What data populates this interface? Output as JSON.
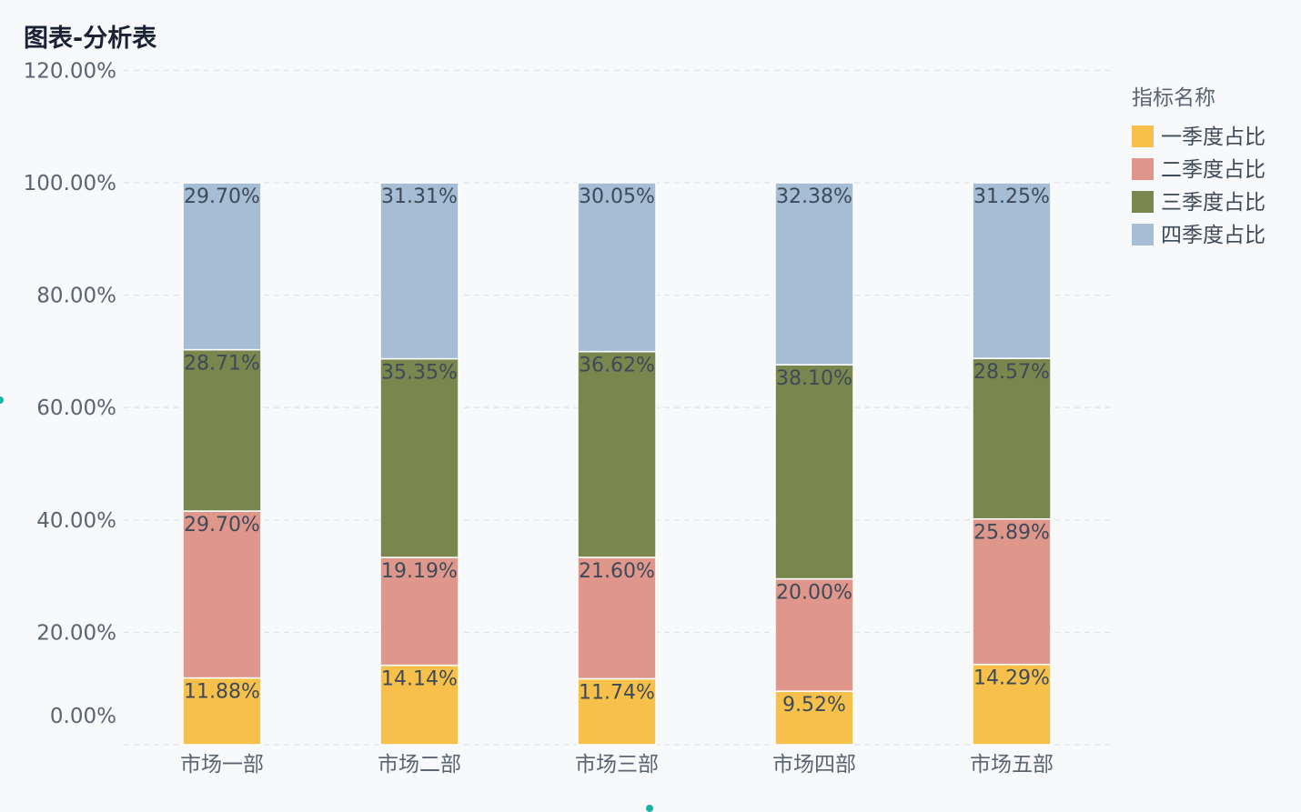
{
  "chart_data": {
    "type": "bar",
    "stacked": true,
    "title": "图表-分析表",
    "categories": [
      "市场一部",
      "市场二部",
      "市场三部",
      "市场四部",
      "市场五部"
    ],
    "series": [
      {
        "name": "一季度占比",
        "color": "#f6c04b",
        "values": [
          11.88,
          14.14,
          11.74,
          9.52,
          14.29
        ],
        "labels": [
          "11.88%",
          "14.14%",
          "11.74%",
          "9.52%",
          "14.29%"
        ]
      },
      {
        "name": "二季度占比",
        "color": "#df978c",
        "values": [
          29.7,
          19.19,
          21.6,
          20.0,
          25.89
        ],
        "labels": [
          "29.70%",
          "19.19%",
          "21.60%",
          "20.00%",
          "25.89%"
        ]
      },
      {
        "name": "三季度占比",
        "color": "#79864d",
        "values": [
          28.71,
          35.35,
          36.62,
          38.1,
          28.57
        ],
        "labels": [
          "28.71%",
          "35.35%",
          "36.62%",
          "38.10%",
          "28.57%"
        ]
      },
      {
        "name": "四季度占比",
        "color": "#a5bed6",
        "values": [
          29.7,
          31.31,
          30.05,
          32.38,
          31.25
        ],
        "labels": [
          "29.70%",
          "31.31%",
          "30.05%",
          "32.38%",
          "31.25%"
        ]
      }
    ],
    "y_ticks": [
      {
        "value": 0,
        "label": "0.00%"
      },
      {
        "value": 20,
        "label": "20.00%"
      },
      {
        "value": 40,
        "label": "40.00%"
      },
      {
        "value": 60,
        "label": "60.00%"
      },
      {
        "value": 80,
        "label": "80.00%"
      },
      {
        "value": 100,
        "label": "100.00%"
      },
      {
        "value": 120,
        "label": "120.00%"
      }
    ],
    "ylim": [
      0,
      120
    ],
    "grid": true,
    "legend": {
      "title": "指标名称",
      "position": "top-right"
    }
  }
}
